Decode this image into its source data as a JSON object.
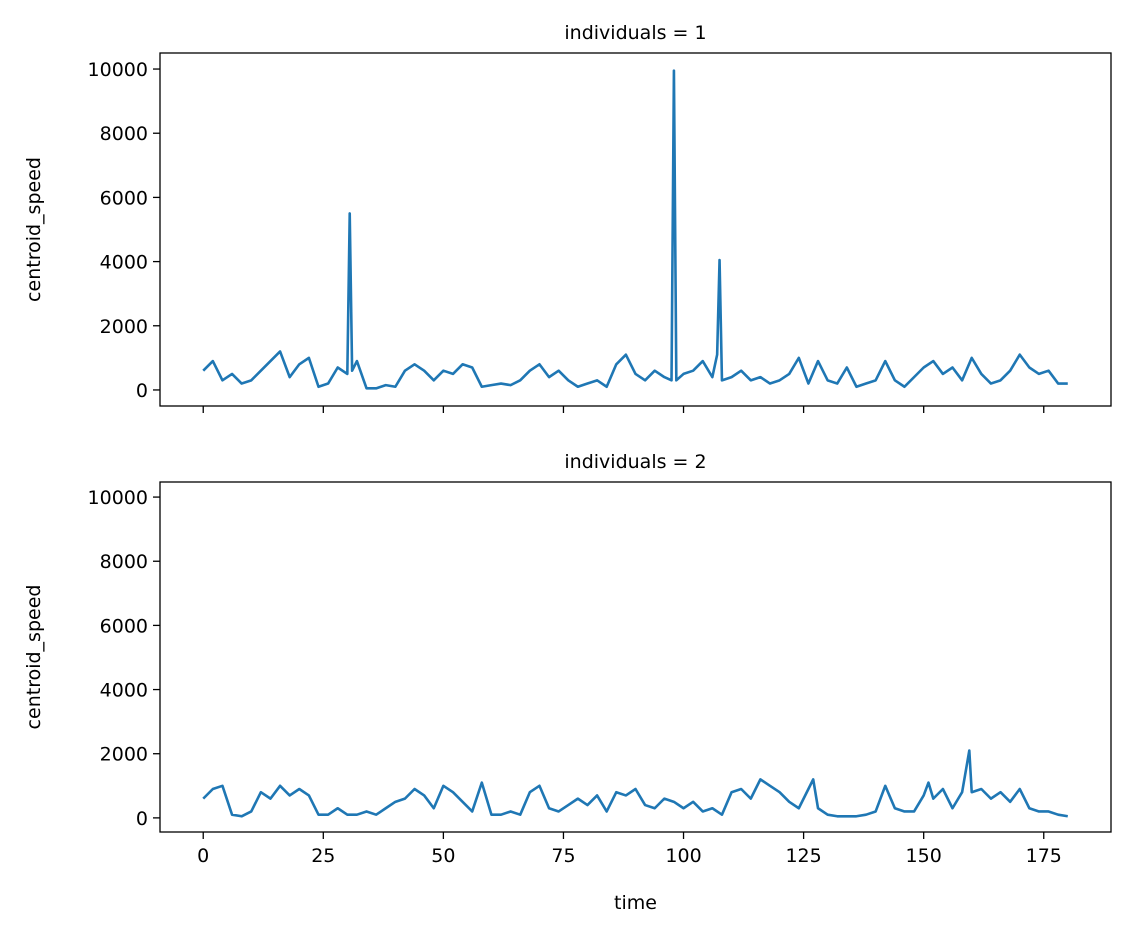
{
  "chart_data": [
    {
      "type": "line",
      "title": "individuals = 1",
      "ylabel": "centroid_speed",
      "x": [
        0,
        2,
        4,
        6,
        8,
        10,
        12,
        14,
        16,
        18,
        20,
        22,
        24,
        26,
        28,
        30,
        30.5,
        31,
        32,
        34,
        36,
        38,
        40,
        42,
        44,
        46,
        48,
        50,
        52,
        54,
        56,
        58,
        60,
        62,
        64,
        66,
        68,
        70,
        72,
        74,
        76,
        78,
        80,
        82,
        84,
        86,
        88,
        90,
        92,
        94,
        96,
        97.5,
        98,
        98.5,
        100,
        102,
        104,
        106,
        107,
        107.5,
        108,
        110,
        112,
        114,
        116,
        118,
        120,
        122,
        124,
        126,
        128,
        130,
        132,
        134,
        136,
        138,
        140,
        142,
        144,
        146,
        148,
        150,
        152,
        154,
        156,
        158,
        160,
        162,
        164,
        166,
        168,
        170,
        172,
        174,
        176,
        178,
        180
      ],
      "series": [
        {
          "name": "centroid_speed",
          "color": "#1f77b4",
          "values": [
            600,
            900,
            300,
            500,
            200,
            300,
            600,
            900,
            1200,
            400,
            800,
            1000,
            100,
            200,
            700,
            500,
            5500,
            600,
            900,
            50,
            50,
            150,
            100,
            600,
            800,
            600,
            300,
            600,
            500,
            800,
            700,
            100,
            150,
            200,
            150,
            300,
            600,
            800,
            400,
            600,
            300,
            100,
            200,
            300,
            100,
            800,
            1100,
            500,
            300,
            600,
            400,
            300,
            9950,
            300,
            500,
            600,
            900,
            400,
            1100,
            4050,
            300,
            400,
            600,
            300,
            400,
            200,
            300,
            500,
            1000,
            200,
            900,
            300,
            200,
            700,
            100,
            200,
            300,
            900,
            300,
            100,
            400,
            700,
            900,
            500,
            700,
            300,
            1000,
            500,
            200,
            300,
            600,
            1100,
            700,
            500,
            600,
            200,
            200
          ]
        }
      ],
      "xlim": [
        -9,
        189
      ],
      "xticks": [
        0,
        25,
        50,
        75,
        100,
        125,
        150,
        175
      ],
      "ylim": [
        -500,
        10500
      ],
      "yticks": [
        0,
        2000,
        4000,
        6000,
        8000,
        10000
      ]
    },
    {
      "type": "line",
      "title": "individuals = 2",
      "ylabel": "centroid_speed",
      "xlabel": "time",
      "x": [
        0,
        2,
        4,
        6,
        8,
        10,
        12,
        14,
        16,
        18,
        20,
        22,
        24,
        26,
        28,
        30,
        32,
        34,
        36,
        38,
        40,
        42,
        44,
        46,
        48,
        50,
        52,
        54,
        56,
        58,
        60,
        62,
        64,
        66,
        68,
        70,
        72,
        74,
        76,
        78,
        80,
        82,
        84,
        86,
        88,
        90,
        92,
        94,
        96,
        98,
        100,
        102,
        104,
        106,
        108,
        110,
        112,
        114,
        116,
        118,
        120,
        122,
        124,
        126,
        127,
        128,
        130,
        132,
        134,
        136,
        138,
        140,
        142,
        144,
        146,
        148,
        150,
        151,
        152,
        154,
        156,
        158,
        159.5,
        160,
        162,
        164,
        166,
        168,
        170,
        172,
        174,
        176,
        178,
        180
      ],
      "series": [
        {
          "name": "centroid_speed",
          "color": "#1f77b4",
          "values": [
            600,
            900,
            1000,
            100,
            50,
            200,
            800,
            600,
            1000,
            700,
            900,
            700,
            100,
            100,
            300,
            100,
            100,
            200,
            100,
            300,
            500,
            600,
            900,
            700,
            300,
            1000,
            800,
            500,
            200,
            1100,
            100,
            100,
            200,
            100,
            800,
            1000,
            300,
            200,
            400,
            600,
            400,
            700,
            200,
            800,
            700,
            900,
            400,
            300,
            600,
            500,
            300,
            500,
            200,
            300,
            100,
            800,
            900,
            600,
            1200,
            1000,
            800,
            500,
            300,
            900,
            1200,
            300,
            100,
            50,
            50,
            50,
            100,
            200,
            1000,
            300,
            200,
            200,
            700,
            1100,
            600,
            900,
            300,
            800,
            2100,
            800,
            900,
            600,
            800,
            500,
            900,
            300,
            200,
            200,
            100,
            50
          ]
        }
      ],
      "xlim": [
        -9,
        189
      ],
      "xticks": [
        0,
        25,
        50,
        75,
        100,
        125,
        150,
        175
      ],
      "ylim": [
        -440,
        10470
      ],
      "yticks": [
        0,
        2000,
        4000,
        6000,
        8000,
        10000
      ]
    }
  ]
}
